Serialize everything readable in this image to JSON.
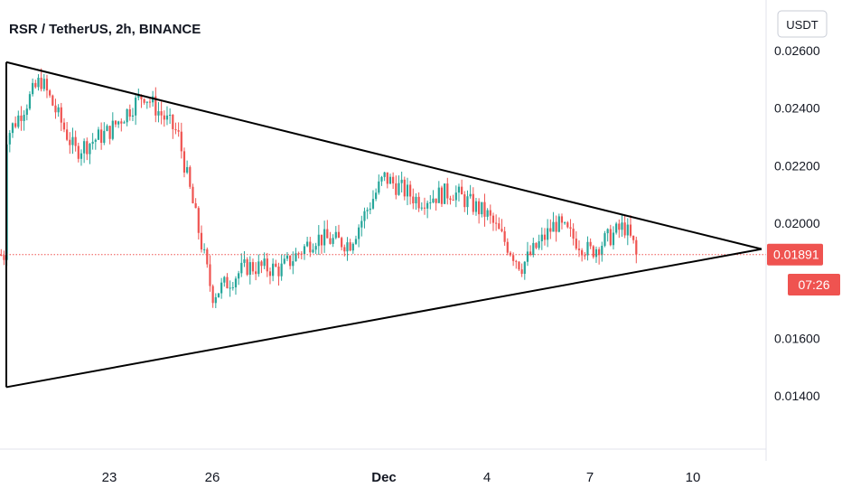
{
  "chart_data": {
    "type": "candlestick",
    "title": "RSR / TetherUS, 2h, BINANCE",
    "currency": "USDT",
    "y_ticks": [
      "0.02600",
      "0.02400",
      "0.02200",
      "0.02000",
      "0.01600",
      "0.01400"
    ],
    "y_tick_values": [
      0.026,
      0.024,
      0.022,
      0.02,
      0.016,
      0.014
    ],
    "x_ticks": [
      {
        "label": "23",
        "bold": false
      },
      {
        "label": "26",
        "bold": false
      },
      {
        "label": "Dec",
        "bold": true
      },
      {
        "label": "4",
        "bold": false
      },
      {
        "label": "7",
        "bold": false
      },
      {
        "label": "10",
        "bold": false
      }
    ],
    "current_price": "0.01891",
    "countdown": "07:26",
    "colors": {
      "up": "#26a69a",
      "down": "#ef5350",
      "price_line": "#ef5350",
      "pattern": "#000000"
    },
    "pattern": "symmetrical triangle",
    "trendlines": [
      {
        "from": [
          "Nov 20",
          0.0256
        ],
        "to": [
          "Dec 12",
          0.0191
        ]
      },
      {
        "from": [
          "Nov 20",
          0.0143
        ],
        "to": [
          "Dec 12",
          0.0191
        ]
      },
      {
        "from": [
          "Nov 20",
          0.0256
        ],
        "to": [
          "Nov 20",
          0.0143
        ]
      }
    ],
    "price_path": [
      {
        "date": "Nov 20",
        "price": 0.023
      },
      {
        "date": "Nov 21",
        "price": 0.025
      },
      {
        "date": "Nov 22",
        "price": 0.0225
      },
      {
        "date": "Nov 23",
        "price": 0.0232
      },
      {
        "date": "Nov 24",
        "price": 0.0245
      },
      {
        "date": "Nov 25",
        "price": 0.0231
      },
      {
        "date": "Nov 26",
        "price": 0.0175
      },
      {
        "date": "Nov 27",
        "price": 0.0185
      },
      {
        "date": "Nov 28",
        "price": 0.0184
      },
      {
        "date": "Nov 29",
        "price": 0.0195
      },
      {
        "date": "Nov 30",
        "price": 0.0193
      },
      {
        "date": "Dec 1",
        "price": 0.0216
      },
      {
        "date": "Dec 2",
        "price": 0.0208
      },
      {
        "date": "Dec 3",
        "price": 0.0211
      },
      {
        "date": "Dec 4",
        "price": 0.0203
      },
      {
        "date": "Dec 5",
        "price": 0.0185
      },
      {
        "date": "Dec 6",
        "price": 0.02
      },
      {
        "date": "Dec 7",
        "price": 0.019
      },
      {
        "date": "Dec 8",
        "price": 0.0199
      },
      {
        "date": "Dec 8.4",
        "price": 0.0189
      }
    ]
  }
}
